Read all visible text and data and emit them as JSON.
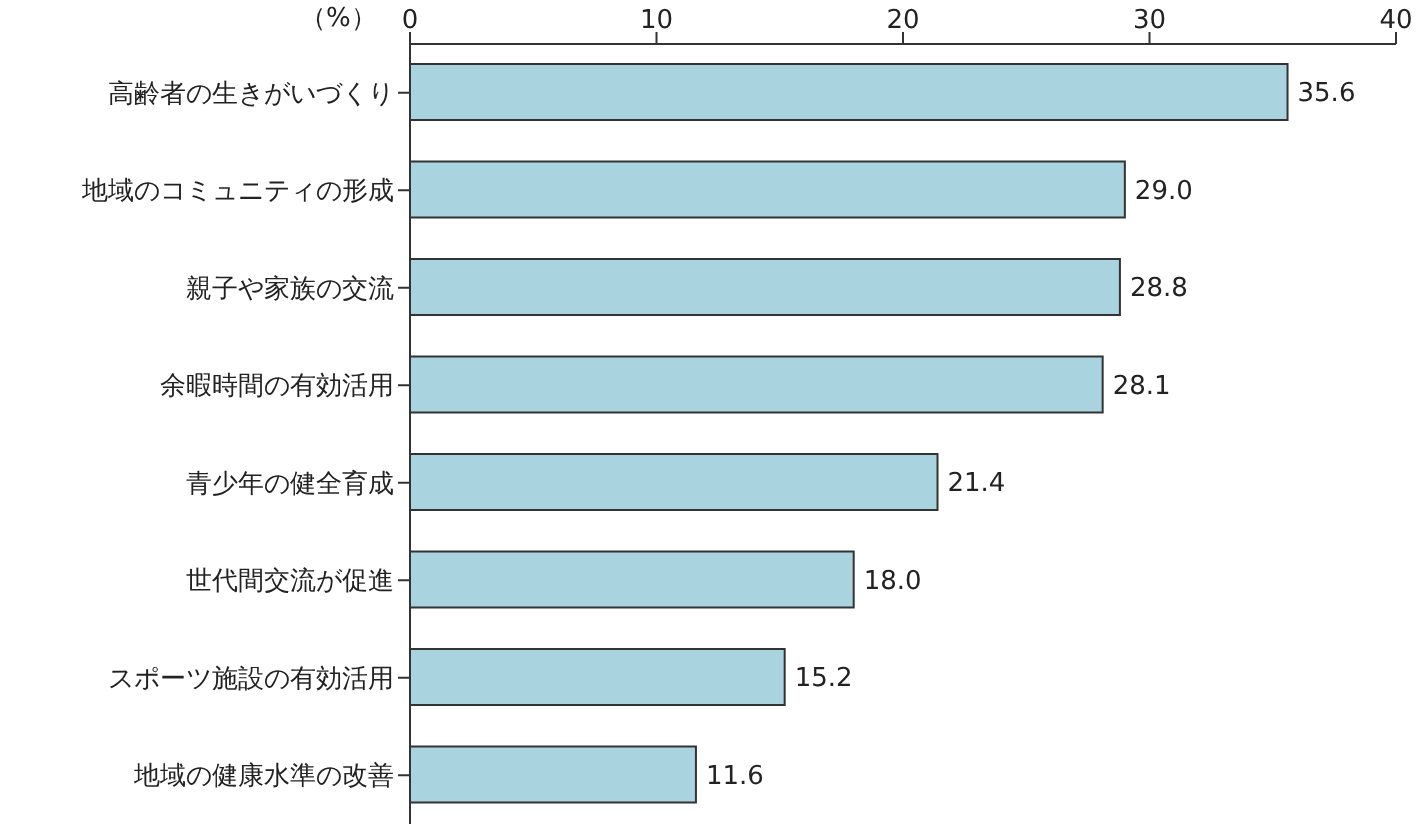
{
  "chart_data": {
    "type": "bar",
    "orientation": "horizontal",
    "xlabel": "（%）",
    "categories": [
      "高齢者の生きがいづくり",
      "地域のコミュニティの形成",
      "親子や家族の交流",
      "余暇時間の有効活用",
      "青少年の健全育成",
      "世代間交流が促進",
      "スポーツ施設の有効活用",
      "地域の健康水準の改善"
    ],
    "values": [
      35.6,
      29.0,
      28.8,
      28.1,
      21.4,
      18.0,
      15.2,
      11.6
    ],
    "value_labels": [
      "35.6",
      "29.0",
      "28.8",
      "28.1",
      "21.4",
      "18.0",
      "15.2",
      "11.6"
    ],
    "color": "#a9d3df",
    "xlim": [
      0,
      40
    ],
    "xticks": [
      0,
      10,
      20,
      30,
      40
    ]
  }
}
